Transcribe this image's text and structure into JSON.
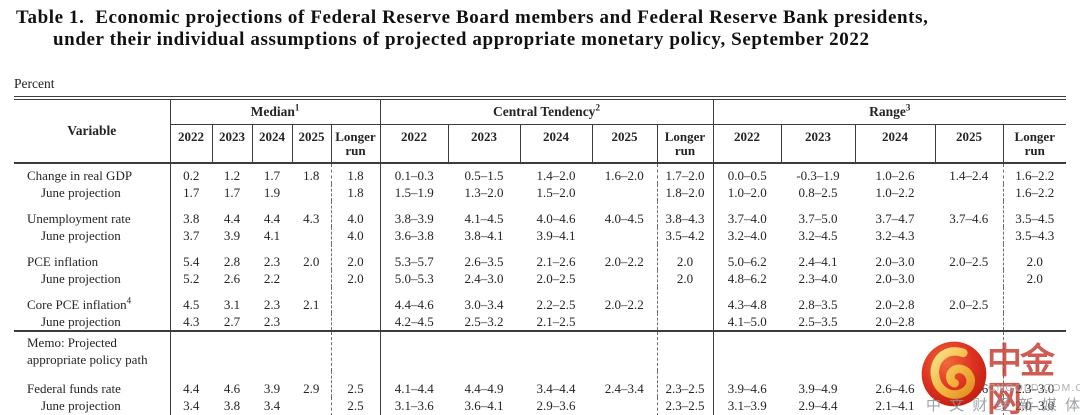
{
  "title": {
    "line1": "Table 1.  Economic projections of Federal Reserve Board members and Federal Reserve Bank presidents,",
    "line2": "under their individual assumptions of projected appropriate monetary policy, September 2022"
  },
  "percent_label": "Percent",
  "table": {
    "variable_header": "Variable",
    "groups": [
      {
        "label": "Median",
        "sup": "1"
      },
      {
        "label": "Central Tendency",
        "sup": "2"
      },
      {
        "label": "Range",
        "sup": "3"
      }
    ],
    "years": [
      "2022",
      "2023",
      "2024",
      "2025",
      "Longer run"
    ],
    "rows": [
      {
        "type": "main",
        "first": true,
        "label": "Change in real GDP",
        "sup": "",
        "cells": [
          "0.2",
          "1.2",
          "1.7",
          "1.8",
          "1.8",
          "0.1–0.3",
          "0.5–1.5",
          "1.4–2.0",
          "1.6–2.0",
          "1.7–2.0",
          "0.0–0.5",
          "-0.3–1.9",
          "1.0–2.6",
          "1.4–2.4",
          "1.6–2.2"
        ]
      },
      {
        "type": "june",
        "label": "June projection",
        "sup": "",
        "cells": [
          "1.7",
          "1.7",
          "1.9",
          "",
          "1.8",
          "1.5–1.9",
          "1.3–2.0",
          "1.5–2.0",
          "",
          "1.8–2.0",
          "1.0–2.0",
          "0.8–2.5",
          "1.0–2.2",
          "",
          "1.6–2.2"
        ]
      },
      {
        "type": "main",
        "gap": true,
        "label": "Unemployment rate",
        "sup": "",
        "cells": [
          "3.8",
          "4.4",
          "4.4",
          "4.3",
          "4.0",
          "3.8–3.9",
          "4.1–4.5",
          "4.0–4.6",
          "4.0–4.5",
          "3.8–4.3",
          "3.7–4.0",
          "3.7–5.0",
          "3.7–4.7",
          "3.7–4.6",
          "3.5–4.5"
        ]
      },
      {
        "type": "june",
        "label": "June projection",
        "sup": "",
        "cells": [
          "3.7",
          "3.9",
          "4.1",
          "",
          "4.0",
          "3.6–3.8",
          "3.8–4.1",
          "3.9–4.1",
          "",
          "3.5–4.2",
          "3.2–4.0",
          "3.2–4.5",
          "3.2–4.3",
          "",
          "3.5–4.3"
        ]
      },
      {
        "type": "main",
        "gap": true,
        "label": "PCE inflation",
        "sup": "",
        "cells": [
          "5.4",
          "2.8",
          "2.3",
          "2.0",
          "2.0",
          "5.3–5.7",
          "2.6–3.5",
          "2.1–2.6",
          "2.0–2.2",
          "2.0",
          "5.0–6.2",
          "2.4–4.1",
          "2.0–3.0",
          "2.0–2.5",
          "2.0"
        ]
      },
      {
        "type": "june",
        "label": "June projection",
        "sup": "",
        "cells": [
          "5.2",
          "2.6",
          "2.2",
          "",
          "2.0",
          "5.0–5.3",
          "2.4–3.0",
          "2.0–2.5",
          "",
          "2.0",
          "4.8–6.2",
          "2.3–4.0",
          "2.0–3.0",
          "",
          "2.0"
        ]
      },
      {
        "type": "main",
        "gap": true,
        "label": "Core PCE inflation",
        "sup": "4",
        "cells": [
          "4.5",
          "3.1",
          "2.3",
          "2.1",
          "",
          "4.4–4.6",
          "3.0–3.4",
          "2.2–2.5",
          "2.0–2.2",
          "",
          "4.3–4.8",
          "2.8–3.5",
          "2.0–2.8",
          "2.0–2.5",
          ""
        ]
      },
      {
        "type": "june",
        "label": "June projection",
        "sup": "",
        "cells": [
          "4.3",
          "2.7",
          "2.3",
          "",
          "",
          "4.2–4.5",
          "2.5–3.2",
          "2.1–2.5",
          "",
          "",
          "4.1–5.0",
          "2.5–3.5",
          "2.0–2.8",
          "",
          ""
        ]
      },
      {
        "type": "memo",
        "rule": true,
        "label": "Memo: Projected",
        "label2": "appropriate policy path",
        "cells": [
          "",
          "",
          "",
          "",
          "",
          "",
          "",
          "",
          "",
          "",
          "",
          "",
          "",
          "",
          ""
        ]
      },
      {
        "type": "main",
        "gap": true,
        "label": "Federal funds rate",
        "sup": "",
        "cells": [
          "4.4",
          "4.6",
          "3.9",
          "2.9",
          "2.5",
          "4.1–4.4",
          "4.4–4.9",
          "3.4–4.4",
          "2.4–3.4",
          "2.3–2.5",
          "3.9–4.6",
          "3.9–4.9",
          "2.6–4.6",
          "2.4–4.6",
          "2.3–3.0"
        ]
      },
      {
        "type": "june",
        "last": true,
        "label": "June projection",
        "sup": "",
        "cells": [
          "3.4",
          "3.8",
          "3.4",
          "",
          "2.5",
          "3.1–3.6",
          "3.6–4.1",
          "2.9–3.6",
          "",
          "2.3–2.5",
          "3.1–3.9",
          "2.9–4.4",
          "2.1–4.1",
          "",
          "2.0–3.0"
        ]
      }
    ]
  },
  "watermark": {
    "brand": "中金网",
    "url": "CNGOLD.COM.CN",
    "tagline": "中 文 财 经 新 媒 体",
    "logo_red": "#d42a1d",
    "logo_gold": "#f2b43c",
    "brand_color": "#c23a2e"
  }
}
